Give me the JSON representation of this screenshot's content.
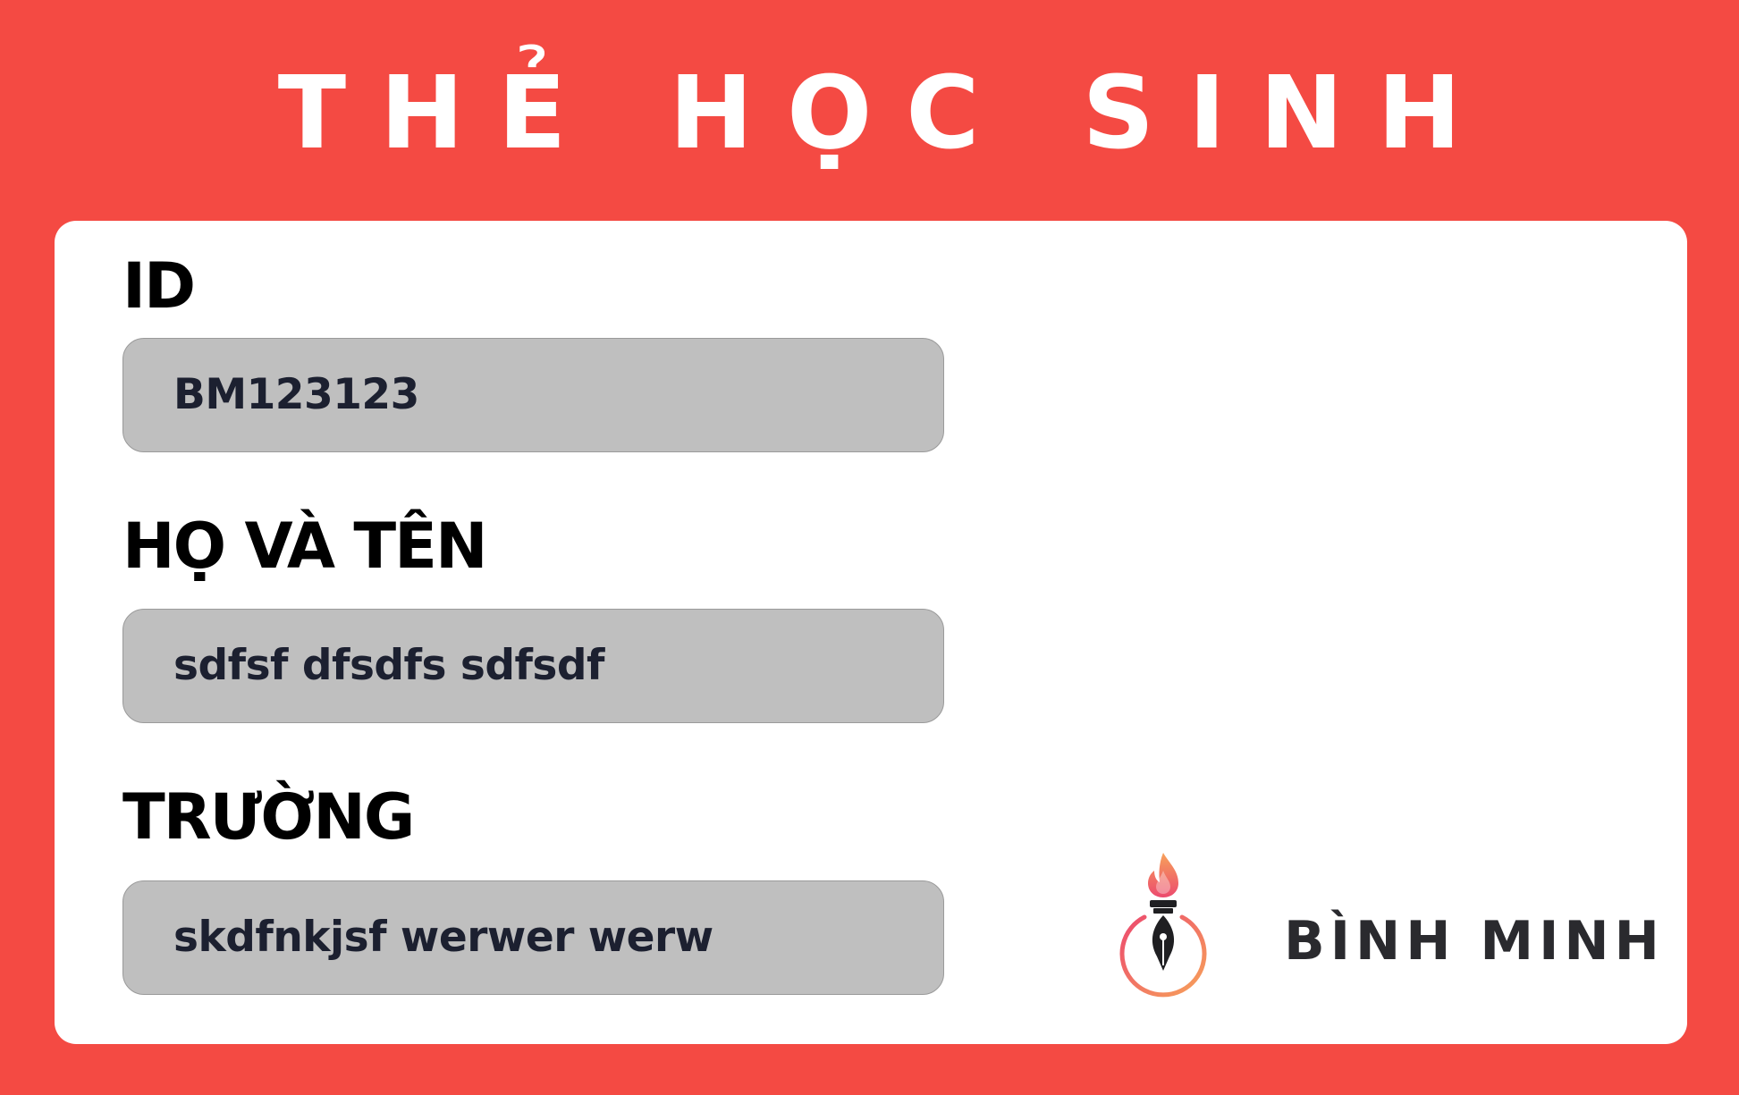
{
  "card": {
    "title": "THẺ HỌC SINH"
  },
  "fields": {
    "id": {
      "label": "ID",
      "value": "BM123123"
    },
    "full_name": {
      "label": "HỌ VÀ TÊN",
      "value": "sdfsf dfsdfs sdfsdf"
    },
    "school": {
      "label": "TRƯỜNG",
      "value": "skdfnkjsf werwer werw"
    }
  },
  "brand": {
    "name": "BÌNH MINH",
    "logo_icon": "pen-nib-flame-icon",
    "colors": {
      "flame_top": "#f7a25a",
      "flame_bottom": "#ec4a6e",
      "ring_start": "#ec4a6e",
      "ring_end": "#f7a25a",
      "nib": "#1f1f22"
    }
  },
  "colors": {
    "background": "#f44a43",
    "panel": "#ffffff",
    "field_box": "#bfbfbf",
    "field_text": "#1c2030",
    "label_text": "#000000"
  }
}
